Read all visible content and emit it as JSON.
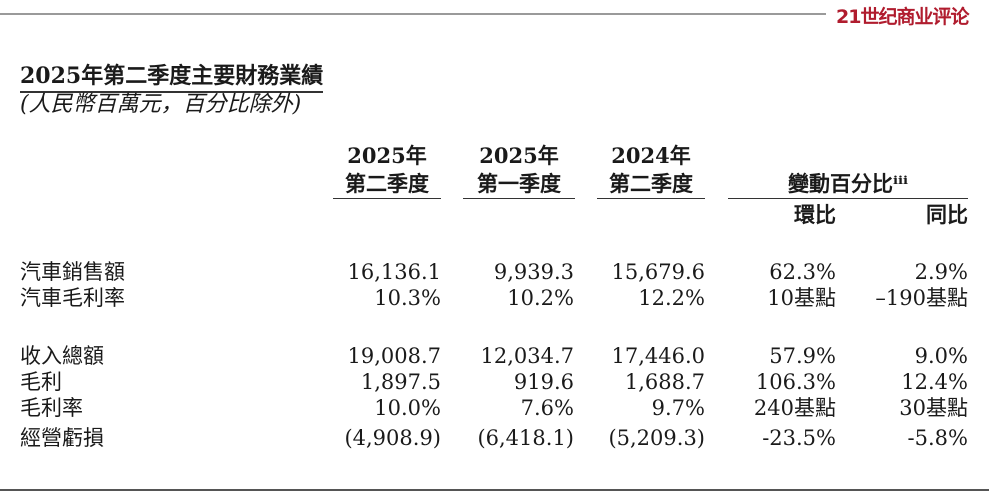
{
  "watermark": "21世纪商业评论",
  "title": "2025年第二季度主要財務業績",
  "subtitle": "(人民幣百萬元，百分比除外)",
  "columns": [
    {
      "line1": "2025年",
      "line2": "第二季度"
    },
    {
      "line1": "2025年",
      "line2": "第一季度"
    },
    {
      "line1": "2024年",
      "line2": "第二季度"
    }
  ],
  "change_header": "變動百分比ⁱⁱⁱ",
  "change_sub": [
    "環比",
    "同比"
  ],
  "rows": [
    {
      "label": "汽車銷售額",
      "values": [
        "16,136.1",
        "9,939.3",
        "15,679.6",
        "62.3%",
        "2.9%"
      ]
    },
    {
      "label": "汽車毛利率",
      "values": [
        "10.3%",
        "10.2%",
        "12.2%",
        "10基點",
        "–190基點"
      ]
    },
    {
      "label": "收入總額",
      "values": [
        "19,008.7",
        "12,034.7",
        "17,446.0",
        "57.9%",
        "9.0%"
      ]
    },
    {
      "label": "毛利",
      "values": [
        "1,897.5",
        "919.6",
        "1,688.7",
        "106.3%",
        "12.4%"
      ]
    },
    {
      "label": "毛利率",
      "values": [
        "10.0%",
        "7.6%",
        "9.7%",
        "240基點",
        "30基點"
      ]
    },
    {
      "label": "經營虧損",
      "values": [
        "(4,908.9)",
        "(6,418.1)",
        "(5,209.3)",
        "-23.5%",
        "-5.8%"
      ]
    }
  ]
}
